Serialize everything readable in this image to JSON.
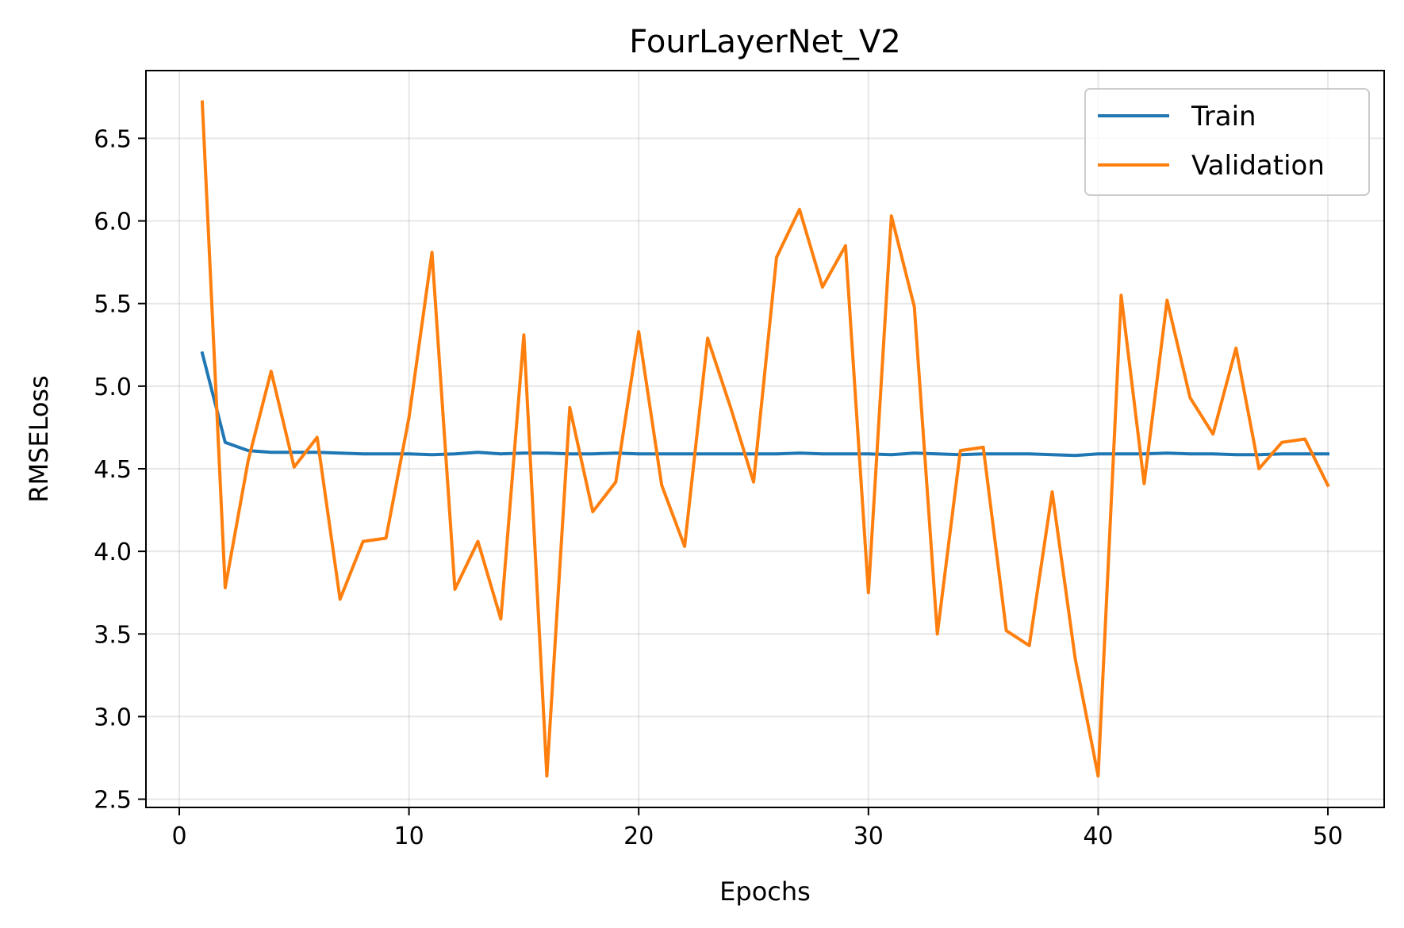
{
  "chart_data": {
    "type": "line",
    "title": "FourLayerNet_V2",
    "xlabel": "Epochs",
    "ylabel": "RMSELoss",
    "xlim": [
      -1.45,
      52.45
    ],
    "ylim": [
      2.45,
      6.91
    ],
    "xticks": [
      0,
      10,
      20,
      30,
      40,
      50
    ],
    "yticks": [
      2.5,
      3.0,
      3.5,
      4.0,
      4.5,
      5.0,
      5.5,
      6.0,
      6.5
    ],
    "ytick_labels": [
      "2.5",
      "3.0",
      "3.5",
      "4.0",
      "4.5",
      "5.0",
      "5.5",
      "6.0",
      "6.5"
    ],
    "grid": true,
    "legend_position": "top-right",
    "x": [
      1,
      2,
      3,
      4,
      5,
      6,
      7,
      8,
      9,
      10,
      11,
      12,
      13,
      14,
      15,
      16,
      17,
      18,
      19,
      20,
      21,
      22,
      23,
      24,
      25,
      26,
      27,
      28,
      29,
      30,
      31,
      32,
      33,
      34,
      35,
      36,
      37,
      38,
      39,
      40,
      41,
      42,
      43,
      44,
      45,
      46,
      47,
      48,
      49,
      50
    ],
    "series": [
      {
        "name": "Train",
        "color": "#1f77b4",
        "values": [
          5.2,
          4.66,
          4.61,
          4.6,
          4.6,
          4.6,
          4.595,
          4.59,
          4.59,
          4.59,
          4.585,
          4.59,
          4.6,
          4.59,
          4.595,
          4.595,
          4.59,
          4.59,
          4.595,
          4.59,
          4.59,
          4.59,
          4.59,
          4.59,
          4.59,
          4.59,
          4.595,
          4.59,
          4.59,
          4.59,
          4.585,
          4.595,
          4.59,
          4.585,
          4.59,
          4.59,
          4.59,
          4.585,
          4.58,
          4.59,
          4.59,
          4.59,
          4.595,
          4.59,
          4.59,
          4.585,
          4.585,
          4.59,
          4.59,
          4.59
        ]
      },
      {
        "name": "Validation",
        "color": "#ff7f0e",
        "values": [
          6.72,
          3.78,
          4.55,
          5.09,
          4.51,
          4.69,
          3.71,
          4.06,
          4.08,
          4.81,
          5.81,
          3.77,
          4.06,
          3.59,
          5.31,
          2.64,
          4.87,
          4.24,
          4.42,
          5.33,
          4.4,
          4.03,
          5.29,
          4.87,
          4.42,
          5.78,
          6.07,
          5.6,
          5.85,
          3.75,
          6.03,
          5.48,
          3.5,
          4.61,
          4.63,
          3.52,
          3.43,
          4.36,
          3.35,
          2.64,
          5.55,
          4.41,
          5.52,
          4.93,
          4.71,
          5.23,
          4.5,
          4.66,
          4.68,
          4.4
        ]
      }
    ]
  }
}
